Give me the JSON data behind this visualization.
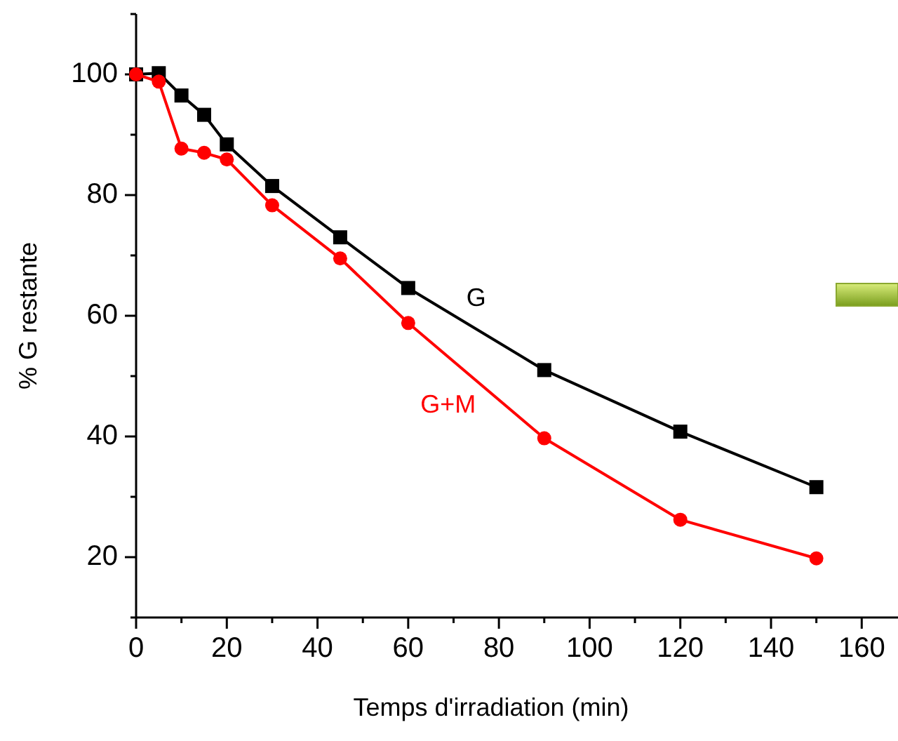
{
  "chart_data": {
    "type": "line",
    "xlabel": "Temps d'irradiation (min)",
    "ylabel": "% G restante",
    "xlim": [
      0,
      168
    ],
    "ylim": [
      10,
      110
    ],
    "xticks": [
      0,
      {
        "value": 10,
        "label": null
      },
      20,
      {
        "value": 30,
        "label": null
      },
      40,
      {
        "value": 50,
        "label": null
      },
      60,
      {
        "value": 70,
        "label": null
      },
      80,
      {
        "value": 90,
        "label": null
      },
      100,
      {
        "value": 110,
        "label": null
      },
      120,
      {
        "value": 130,
        "label": null
      },
      140,
      {
        "value": 150,
        "label": null
      },
      160
    ],
    "yticks": [
      {
        "value": 10,
        "label": null
      },
      20,
      {
        "value": 30,
        "label": null
      },
      40,
      {
        "value": 50,
        "label": null
      },
      60,
      {
        "value": 70,
        "label": null
      },
      80,
      {
        "value": 90,
        "label": null
      },
      100,
      {
        "value": 110,
        "label": null
      }
    ],
    "grid": false,
    "line_style": "solid",
    "series": [
      {
        "name": "G",
        "color": "#000000",
        "marker": "square",
        "x": [
          0,
          5,
          10,
          15,
          20,
          30,
          45,
          60,
          90,
          120,
          150
        ],
        "values": [
          100,
          100.2,
          96.5,
          93.3,
          88.4,
          81.5,
          73,
          64.6,
          51,
          40.8,
          31.6
        ]
      },
      {
        "name": "G+M",
        "color": "#ff0000",
        "marker": "circle",
        "x": [
          0,
          5,
          10,
          15,
          20,
          30,
          45,
          60,
          90,
          120,
          150
        ],
        "values": [
          100,
          98.8,
          87.7,
          87,
          85.9,
          78.3,
          69.5,
          58.8,
          39.7,
          26.2,
          19.8
        ]
      }
    ]
  }
}
